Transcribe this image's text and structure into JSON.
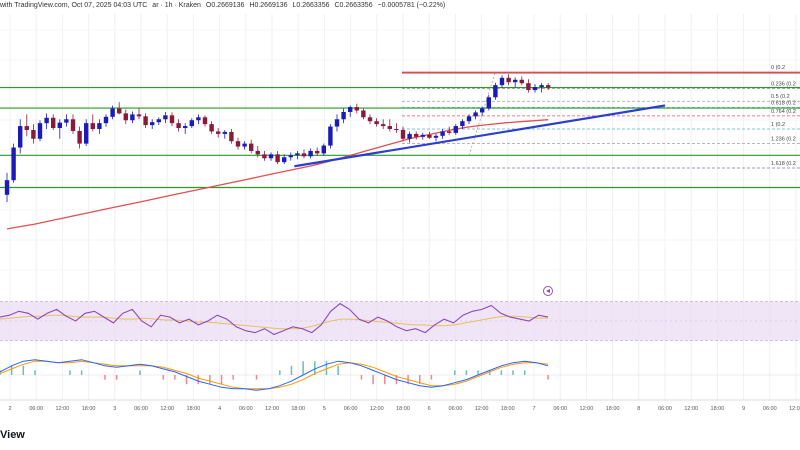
{
  "header": {
    "title": "with TradingView.com, Oct 07, 2025 04:03 UTC",
    "symbol": "ar · 1h · Kraken",
    "open": "O0.2669136",
    "high": "H0.2669136",
    "low": "L0.2663356",
    "close": "C0.2663356",
    "change": "−0.0005781 (−0.22%)"
  },
  "brand": {
    "text": "View"
  },
  "colors": {
    "up": "#1b1bb8",
    "down": "#8a1a3a",
    "ma": "#e05050",
    "support": "#2a9a2a",
    "trend": "#2a3fd0",
    "fib0": "#d03030",
    "rsi": "#8c4ab8",
    "rsi_ma": "#e8c060",
    "rsi_band": "#ead8f4",
    "macd": "#2962ff",
    "signal": "#ff9800"
  },
  "chart_data": [
    {
      "type": "candlestick",
      "title": "",
      "x_ticks": [
        "2",
        "06:00",
        "12:00",
        "18:00",
        "3",
        "06:00",
        "12:00",
        "18:00",
        "4",
        "06:00",
        "12:00",
        "18:00",
        "5",
        "06:00",
        "12:00",
        "18:00",
        "6",
        "06:00",
        "12:00",
        "18:00",
        "7",
        "06:00",
        "12:00",
        "18:00",
        "8",
        "06:00",
        "12:00",
        "18:00",
        "9",
        "06:00",
        "12:00"
      ],
      "ylim": [
        0.235,
        0.291
      ],
      "candles": [
        [
          0.2535,
          0.258,
          0.252,
          0.2565
        ],
        [
          0.2565,
          0.264,
          0.256,
          0.2632
        ],
        [
          0.2632,
          0.269,
          0.262,
          0.2676
        ],
        [
          0.2676,
          0.27,
          0.2655,
          0.2668
        ],
        [
          0.2668,
          0.268,
          0.264,
          0.265
        ],
        [
          0.265,
          0.2688,
          0.2645,
          0.2682
        ],
        [
          0.2682,
          0.2702,
          0.267,
          0.2693
        ],
        [
          0.2693,
          0.27,
          0.2668,
          0.2672
        ],
        [
          0.2672,
          0.269,
          0.265,
          0.2683
        ],
        [
          0.2683,
          0.27,
          0.2675,
          0.269
        ],
        [
          0.269,
          0.27,
          0.266,
          0.2666
        ],
        [
          0.2666,
          0.2675,
          0.263,
          0.264
        ],
        [
          0.264,
          0.269,
          0.2635,
          0.2682
        ],
        [
          0.2682,
          0.27,
          0.2665,
          0.267
        ],
        [
          0.267,
          0.269,
          0.266,
          0.2682
        ],
        [
          0.2682,
          0.27,
          0.2675,
          0.2695
        ],
        [
          0.2695,
          0.2718,
          0.269,
          0.2712
        ],
        [
          0.2712,
          0.2725,
          0.27,
          0.2702
        ],
        [
          0.2702,
          0.271,
          0.268,
          0.2688
        ],
        [
          0.2688,
          0.2706,
          0.2682,
          0.27
        ],
        [
          0.27,
          0.2712,
          0.269,
          0.2696
        ],
        [
          0.2696,
          0.2702,
          0.2672,
          0.2678
        ],
        [
          0.2678,
          0.269,
          0.267,
          0.2684
        ],
        [
          0.2684,
          0.2694,
          0.2678,
          0.269
        ],
        [
          0.269,
          0.2705,
          0.2682,
          0.2698
        ],
        [
          0.2698,
          0.2704,
          0.2676,
          0.2682
        ],
        [
          0.2682,
          0.269,
          0.2665,
          0.2672
        ],
        [
          0.2672,
          0.2682,
          0.266,
          0.2676
        ],
        [
          0.2676,
          0.2692,
          0.2672,
          0.2688
        ],
        [
          0.2688,
          0.27,
          0.268,
          0.2694
        ],
        [
          0.2694,
          0.2698,
          0.2675,
          0.268
        ],
        [
          0.268,
          0.2686,
          0.266,
          0.2665
        ],
        [
          0.2665,
          0.2672,
          0.2652,
          0.266
        ],
        [
          0.266,
          0.2668,
          0.265,
          0.2664
        ],
        [
          0.2664,
          0.267,
          0.264,
          0.2645
        ],
        [
          0.2645,
          0.2652,
          0.2628,
          0.2634
        ],
        [
          0.2634,
          0.2645,
          0.2628,
          0.264
        ],
        [
          0.264,
          0.2648,
          0.262,
          0.2625
        ],
        [
          0.2625,
          0.2635,
          0.2612,
          0.2618
        ],
        [
          0.2618,
          0.2625,
          0.2605,
          0.261
        ],
        [
          0.261,
          0.2622,
          0.2605,
          0.2618
        ],
        [
          0.2618,
          0.2625,
          0.2598,
          0.2602
        ],
        [
          0.2602,
          0.2618,
          0.2598,
          0.2612
        ],
        [
          0.2612,
          0.2622,
          0.2605,
          0.2616
        ],
        [
          0.2616,
          0.2625,
          0.2608,
          0.262
        ],
        [
          0.262,
          0.2628,
          0.261,
          0.2614
        ],
        [
          0.2614,
          0.263,
          0.261,
          0.2625
        ],
        [
          0.2625,
          0.2632,
          0.2615,
          0.262
        ],
        [
          0.262,
          0.264,
          0.2615,
          0.2636
        ],
        [
          0.2636,
          0.268,
          0.263,
          0.2675
        ],
        [
          0.2675,
          0.27,
          0.2665,
          0.269
        ],
        [
          0.269,
          0.2712,
          0.2682,
          0.2705
        ],
        [
          0.2705,
          0.2718,
          0.2695,
          0.2715
        ],
        [
          0.2715,
          0.2722,
          0.2702,
          0.2708
        ],
        [
          0.2708,
          0.2712,
          0.269,
          0.2694
        ],
        [
          0.2694,
          0.27,
          0.268,
          0.2686
        ],
        [
          0.2686,
          0.2692,
          0.2675,
          0.268
        ],
        [
          0.268,
          0.269,
          0.267,
          0.2676
        ],
        [
          0.2676,
          0.269,
          0.2665,
          0.267
        ],
        [
          0.267,
          0.2682,
          0.2662,
          0.2668
        ],
        [
          0.2668,
          0.2675,
          0.2645,
          0.265
        ],
        [
          0.265,
          0.2665,
          0.2642,
          0.266
        ],
        [
          0.266,
          0.2665,
          0.2648,
          0.2654
        ],
        [
          0.2654,
          0.2662,
          0.2648,
          0.2658
        ],
        [
          0.2658,
          0.2664,
          0.265,
          0.2652
        ],
        [
          0.2652,
          0.266,
          0.2645,
          0.2656
        ],
        [
          0.2656,
          0.267,
          0.265,
          0.2665
        ],
        [
          0.2665,
          0.2675,
          0.2658,
          0.2662
        ],
        [
          0.2662,
          0.268,
          0.2658,
          0.2676
        ],
        [
          0.2676,
          0.269,
          0.267,
          0.2686
        ],
        [
          0.2686,
          0.27,
          0.268,
          0.2696
        ],
        [
          0.2696,
          0.2708,
          0.269,
          0.2704
        ],
        [
          0.2704,
          0.2716,
          0.2698,
          0.2712
        ],
        [
          0.2712,
          0.274,
          0.2708,
          0.2735
        ],
        [
          0.2735,
          0.2765,
          0.273,
          0.276
        ],
        [
          0.276,
          0.278,
          0.2755,
          0.2775
        ],
        [
          0.2775,
          0.2782,
          0.276,
          0.2766
        ],
        [
          0.2766,
          0.2776,
          0.2755,
          0.2771
        ],
        [
          0.2771,
          0.2778,
          0.276,
          0.2764
        ],
        [
          0.2764,
          0.2772,
          0.2745,
          0.275
        ],
        [
          0.275,
          0.2762,
          0.2745,
          0.2756
        ],
        [
          0.2756,
          0.2764,
          0.2745,
          0.276
        ],
        [
          0.276,
          0.2764,
          0.275,
          0.2755
        ]
      ],
      "moving_average": [
        0.2465,
        0.247,
        0.2475,
        0.2481,
        0.2487,
        0.2493,
        0.2499,
        0.2505,
        0.2511,
        0.2517,
        0.2523,
        0.2529,
        0.2535,
        0.2541,
        0.2547,
        0.2553,
        0.2559,
        0.2565,
        0.2571,
        0.2577,
        0.2583,
        0.2589,
        0.2595,
        0.2602,
        0.261,
        0.2618,
        0.2626,
        0.2634,
        0.2642,
        0.265,
        0.2656,
        0.2662,
        0.2668,
        0.2673,
        0.2677,
        0.268,
        0.2683,
        0.2685,
        0.2687,
        0.2689
      ],
      "horizontal_levels": [
        0.2785,
        0.2755,
        0.2713,
        0.2616,
        0.255
      ],
      "trendline": [
        [
          39,
          0.261
        ],
        [
          91,
          0.271
        ]
      ],
      "fib_levels": [
        {
          "label": "0 (0.2",
          "value": 0.2787,
          "color": "#d03030"
        },
        {
          "label": "0.236 (0.2",
          "value": 0.2753,
          "color": "#888888"
        },
        {
          "label": "0.5 (0.2",
          "value": 0.2727,
          "color": "#888888"
        },
        {
          "label": "0.618 (0.2",
          "value": 0.2714,
          "color": "#2a9a6a"
        },
        {
          "label": "0.764 (0.2",
          "value": 0.2697,
          "color": "#d03030"
        },
        {
          "label": "1 (0.2",
          "value": 0.267,
          "color": "#30a0c0"
        },
        {
          "label": "1.236 (0.2",
          "value": 0.264,
          "color": "#888888"
        },
        {
          "label": "1.618 (0.2",
          "value": 0.259,
          "color": "#6050c0"
        }
      ],
      "fib_range": [
        [
          70,
          0.2616
        ],
        [
          74,
          0.2787
        ]
      ]
    },
    {
      "type": "line",
      "title": "",
      "series": [
        {
          "values": [
            54,
            56,
            60,
            58,
            52,
            58,
            62,
            55,
            50,
            58,
            60,
            54,
            48,
            58,
            62,
            50,
            44,
            56,
            54,
            48,
            52,
            46,
            50,
            56,
            52,
            44,
            40,
            38,
            42,
            36,
            40,
            44,
            42,
            38,
            46,
            60,
            68,
            62,
            52,
            48,
            54,
            50,
            44,
            40,
            42,
            38,
            46,
            52,
            48,
            56,
            60,
            62,
            66,
            58,
            54,
            52,
            50,
            56,
            54
          ]
        },
        {
          "values": [
            52,
            53,
            54,
            55,
            55,
            56,
            56,
            55,
            54,
            54,
            54,
            53,
            52,
            52,
            53,
            52,
            51,
            51,
            50,
            49,
            49,
            48,
            47,
            46,
            45,
            44,
            43,
            42,
            42,
            42,
            44,
            47,
            50,
            52,
            52,
            51,
            50,
            49,
            48,
            47,
            46,
            46,
            45,
            45,
            46,
            48,
            50,
            52,
            54,
            55,
            55,
            54,
            53,
            53
          ]
        }
      ],
      "ylim": [
        20,
        80
      ],
      "band": [
        30,
        70
      ]
    },
    {
      "type": "line",
      "title": "",
      "series": [
        {
          "values": [
            0.2,
            0.6,
            0.9,
            1.0,
            0.9,
            0.8,
            0.9,
            1.0,
            0.8,
            0.6,
            0.5,
            0.6,
            0.7,
            0.6,
            0.4,
            0.2,
            -0.1,
            -0.4,
            -0.6,
            -0.8,
            -0.9,
            -0.9,
            -1.0,
            -0.9,
            -0.7,
            -0.4,
            0.0,
            0.4,
            0.7,
            0.9,
            0.8,
            0.6,
            0.3,
            0.0,
            -0.3,
            -0.5,
            -0.7,
            -0.8,
            -0.7,
            -0.5,
            -0.3,
            0.0,
            0.3,
            0.6,
            0.8,
            0.9,
            0.8,
            0.6
          ]
        },
        {
          "values": [
            0.1,
            0.4,
            0.7,
            0.9,
            0.9,
            0.8,
            0.8,
            0.9,
            0.8,
            0.7,
            0.6,
            0.6,
            0.6,
            0.6,
            0.5,
            0.3,
            0.1,
            -0.2,
            -0.4,
            -0.6,
            -0.8,
            -0.9,
            -0.9,
            -0.9,
            -0.8,
            -0.6,
            -0.3,
            0.1,
            0.4,
            0.7,
            0.8,
            0.7,
            0.5,
            0.2,
            -0.1,
            -0.3,
            -0.5,
            -0.7,
            -0.7,
            -0.6,
            -0.4,
            -0.1,
            0.2,
            0.5,
            0.7,
            0.8,
            0.8,
            0.7
          ]
        }
      ],
      "ylim": [
        -1.5,
        1.5
      ]
    }
  ]
}
